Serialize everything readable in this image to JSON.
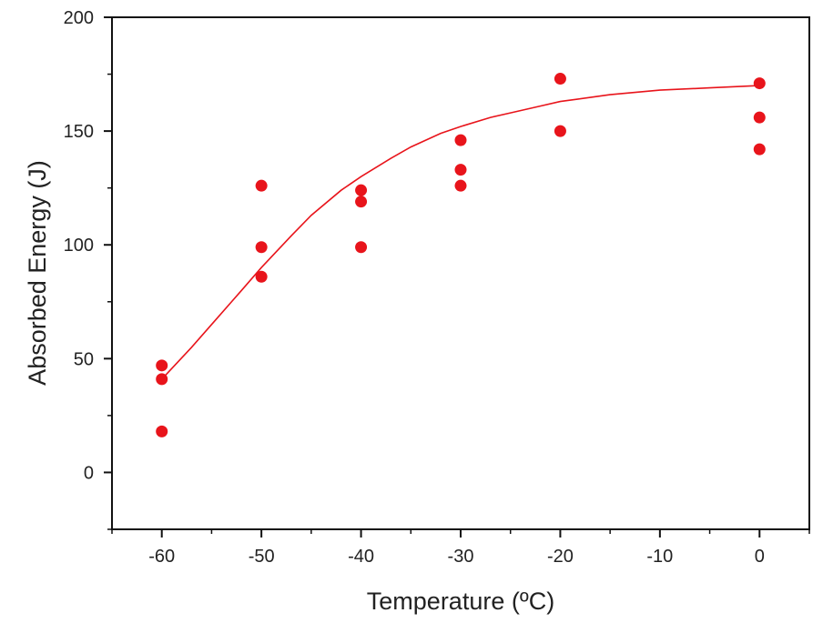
{
  "chart_data": {
    "type": "scatter",
    "title": "",
    "xlabel": "Temperature (ºC)",
    "ylabel": "Absorbed Energy (J)",
    "xlim": [
      -65,
      5
    ],
    "ylim": [
      -25,
      200
    ],
    "x_ticks": [
      -60,
      -50,
      -40,
      -30,
      -20,
      -10,
      0
    ],
    "x_tick_labels": [
      "-60",
      "-50",
      "-40",
      "-30",
      "-20",
      "-10",
      "0"
    ],
    "y_ticks": [
      0,
      50,
      100,
      150,
      200
    ],
    "y_tick_labels": [
      "0",
      "50",
      "100",
      "150",
      "200"
    ],
    "grid": false,
    "series": [
      {
        "name": "measured",
        "kind": "scatter",
        "color": "#e8141b",
        "points": [
          {
            "x": -60,
            "y": 47
          },
          {
            "x": -60,
            "y": 41
          },
          {
            "x": -60,
            "y": 18
          },
          {
            "x": -50,
            "y": 126
          },
          {
            "x": -50,
            "y": 99
          },
          {
            "x": -50,
            "y": 86
          },
          {
            "x": -40,
            "y": 124
          },
          {
            "x": -40,
            "y": 119
          },
          {
            "x": -40,
            "y": 99
          },
          {
            "x": -30,
            "y": 146
          },
          {
            "x": -30,
            "y": 133
          },
          {
            "x": -30,
            "y": 126
          },
          {
            "x": -20,
            "y": 173
          },
          {
            "x": -20,
            "y": 150
          },
          {
            "x": 0,
            "y": 171
          },
          {
            "x": 0,
            "y": 156
          },
          {
            "x": 0,
            "y": 142
          }
        ]
      },
      {
        "name": "fit",
        "kind": "line",
        "color": "#e8141b",
        "points": [
          {
            "x": -60,
            "y": 41
          },
          {
            "x": -57,
            "y": 55
          },
          {
            "x": -55,
            "y": 65
          },
          {
            "x": -52,
            "y": 80
          },
          {
            "x": -50,
            "y": 90
          },
          {
            "x": -47,
            "y": 104
          },
          {
            "x": -45,
            "y": 113
          },
          {
            "x": -42,
            "y": 124
          },
          {
            "x": -40,
            "y": 130
          },
          {
            "x": -37,
            "y": 138
          },
          {
            "x": -35,
            "y": 143
          },
          {
            "x": -32,
            "y": 149
          },
          {
            "x": -30,
            "y": 152
          },
          {
            "x": -27,
            "y": 156
          },
          {
            "x": -25,
            "y": 158
          },
          {
            "x": -22,
            "y": 161
          },
          {
            "x": -20,
            "y": 163
          },
          {
            "x": -15,
            "y": 166
          },
          {
            "x": -10,
            "y": 168
          },
          {
            "x": -5,
            "y": 169
          },
          {
            "x": 0,
            "y": 170
          }
        ]
      }
    ]
  }
}
